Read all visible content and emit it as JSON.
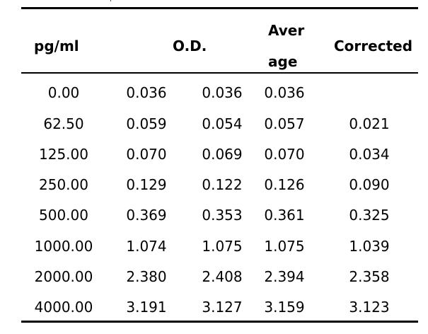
{
  "table": {
    "headers": {
      "conc": "pg/ml",
      "od": "O.D.",
      "average_line1": "Aver",
      "average_line2": "age",
      "corrected": "Corrected"
    },
    "rows": [
      {
        "conc": "0.00",
        "od1": "0.036",
        "od2": "0.036",
        "average": "0.036",
        "corrected": ""
      },
      {
        "conc": "62.50",
        "od1": "0.059",
        "od2": "0.054",
        "average": "0.057",
        "corrected": "0.021"
      },
      {
        "conc": "125.00",
        "od1": "0.070",
        "od2": "0.069",
        "average": "0.070",
        "corrected": "0.034"
      },
      {
        "conc": "250.00",
        "od1": "0.129",
        "od2": "0.122",
        "average": "0.126",
        "corrected": "0.090"
      },
      {
        "conc": "500.00",
        "od1": "0.369",
        "od2": "0.353",
        "average": "0.361",
        "corrected": "0.325"
      },
      {
        "conc": "1000.00",
        "od1": "1.074",
        "od2": "1.075",
        "average": "1.075",
        "corrected": "1.039"
      },
      {
        "conc": "2000.00",
        "od1": "2.380",
        "od2": "2.408",
        "average": "2.394",
        "corrected": "2.358"
      },
      {
        "conc": "4000.00",
        "od1": "3.191",
        "od2": "3.127",
        "average": "3.159",
        "corrected": "3.123"
      }
    ]
  }
}
